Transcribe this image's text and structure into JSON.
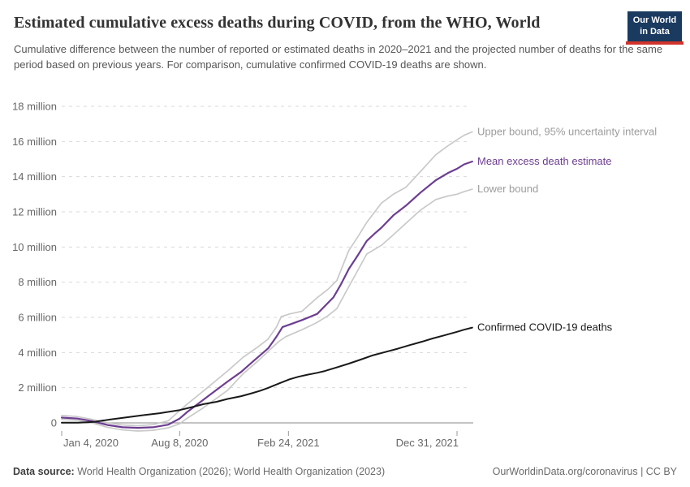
{
  "header": {
    "title": "Estimated cumulative excess deaths during COVID, from the WHO, World",
    "subtitle": "Cumulative difference between the number of reported or estimated deaths in 2020–2021 and the projected number of deaths for the same period based on previous years. For comparison, cumulative confirmed COVID-19 deaths are shown.",
    "logo": {
      "line1": "Our World",
      "line2": "in Data",
      "bg_color": "#1a3a5f",
      "accent_color": "#d0342c",
      "text_color": "#ffffff"
    }
  },
  "footer": {
    "datasource_label": "Data source:",
    "datasource_text": " World Health Organization (2026); World Health Organization (2023)",
    "license_text": "OurWorldinData.org/coronavirus | CC BY"
  },
  "chart_data": {
    "type": "line",
    "title": "Estimated cumulative excess deaths during COVID, from the WHO, World",
    "xlabel": "",
    "ylabel": "",
    "grid": {
      "show": true,
      "color": "#dadada",
      "zero_line_color": "#a0a0a0",
      "tick_color": "#999999",
      "axis_text_color": "#666666"
    },
    "y_axis": {
      "unit_label": "million",
      "zero_label": "0",
      "min": -0.6,
      "max": 18,
      "ticks": [
        0,
        2,
        4,
        6,
        8,
        10,
        12,
        14,
        16,
        18
      ]
    },
    "x_axis": {
      "domain_days": [
        0,
        727
      ],
      "series_end_day": 755,
      "ticks": [
        {
          "day": 0,
          "label": "Jan 4, 2020",
          "anchor": "start"
        },
        {
          "day": 217,
          "label": "Aug 8, 2020",
          "anchor": "middle"
        },
        {
          "day": 417,
          "label": "Feb 24, 2021",
          "anchor": "middle"
        },
        {
          "day": 727,
          "label": "Dec 31, 2021",
          "anchor": "end"
        }
      ]
    },
    "legend_position": "line-end-labels",
    "series": [
      {
        "id": "upper-bound",
        "label": "Upper bound, 95% uncertainty interval",
        "color": "#c9c9c9",
        "label_color": "#9c9c9c",
        "stroke_width": 1.7,
        "points_day_millions": [
          [
            0,
            0.42
          ],
          [
            28,
            0.36
          ],
          [
            56,
            0.2
          ],
          [
            84,
            0.0
          ],
          [
            112,
            -0.12
          ],
          [
            140,
            -0.16
          ],
          [
            168,
            -0.1
          ],
          [
            196,
            0.12
          ],
          [
            217,
            0.7
          ],
          [
            230,
            1.05
          ],
          [
            260,
            1.8
          ],
          [
            305,
            2.95
          ],
          [
            334,
            3.74
          ],
          [
            360,
            4.3
          ],
          [
            379,
            4.75
          ],
          [
            395,
            5.45
          ],
          [
            404,
            6.05
          ],
          [
            420,
            6.2
          ],
          [
            442,
            6.35
          ],
          [
            469,
            7.1
          ],
          [
            490,
            7.6
          ],
          [
            506,
            8.1
          ],
          [
            528,
            9.8
          ],
          [
            545,
            10.6
          ],
          [
            561,
            11.4
          ],
          [
            588,
            12.5
          ],
          [
            610,
            13.0
          ],
          [
            633,
            13.4
          ],
          [
            660,
            14.3
          ],
          [
            688,
            15.25
          ],
          [
            710,
            15.75
          ],
          [
            727,
            16.1
          ],
          [
            740,
            16.35
          ],
          [
            755,
            16.55
          ]
        ]
      },
      {
        "id": "lower-bound",
        "label": "Lower bound",
        "color": "#c9c9c9",
        "label_color": "#9c9c9c",
        "stroke_width": 1.7,
        "points_day_millions": [
          [
            0,
            0.2
          ],
          [
            28,
            0.15
          ],
          [
            56,
            0.0
          ],
          [
            84,
            -0.25
          ],
          [
            112,
            -0.4
          ],
          [
            140,
            -0.46
          ],
          [
            168,
            -0.42
          ],
          [
            196,
            -0.28
          ],
          [
            217,
            -0.05
          ],
          [
            230,
            0.25
          ],
          [
            260,
            0.85
          ],
          [
            305,
            1.85
          ],
          [
            334,
            2.8
          ],
          [
            360,
            3.5
          ],
          [
            379,
            4.05
          ],
          [
            400,
            4.65
          ],
          [
            412,
            4.9
          ],
          [
            442,
            5.3
          ],
          [
            469,
            5.7
          ],
          [
            490,
            6.1
          ],
          [
            506,
            6.5
          ],
          [
            528,
            7.75
          ],
          [
            545,
            8.7
          ],
          [
            561,
            9.6
          ],
          [
            588,
            10.1
          ],
          [
            610,
            10.7
          ],
          [
            633,
            11.35
          ],
          [
            660,
            12.1
          ],
          [
            688,
            12.7
          ],
          [
            710,
            12.9
          ],
          [
            727,
            13.0
          ],
          [
            740,
            13.15
          ],
          [
            755,
            13.29
          ]
        ]
      },
      {
        "id": "mean-excess-deaths",
        "label": "Mean excess death estimate",
        "color": "#6d3e91",
        "label_color": "#6d3e91",
        "stroke_width": 2.2,
        "points_day_millions": [
          [
            0,
            0.3
          ],
          [
            28,
            0.25
          ],
          [
            56,
            0.1
          ],
          [
            84,
            -0.12
          ],
          [
            112,
            -0.25
          ],
          [
            140,
            -0.28
          ],
          [
            168,
            -0.25
          ],
          [
            196,
            -0.1
          ],
          [
            217,
            0.25
          ],
          [
            230,
            0.6
          ],
          [
            260,
            1.3
          ],
          [
            305,
            2.35
          ],
          [
            330,
            2.9
          ],
          [
            350,
            3.45
          ],
          [
            380,
            4.25
          ],
          [
            395,
            4.9
          ],
          [
            406,
            5.45
          ],
          [
            420,
            5.6
          ],
          [
            442,
            5.85
          ],
          [
            470,
            6.2
          ],
          [
            500,
            7.15
          ],
          [
            514,
            7.9
          ],
          [
            528,
            8.75
          ],
          [
            545,
            9.55
          ],
          [
            561,
            10.35
          ],
          [
            575,
            10.75
          ],
          [
            588,
            11.1
          ],
          [
            610,
            11.8
          ],
          [
            633,
            12.35
          ],
          [
            660,
            13.1
          ],
          [
            688,
            13.8
          ],
          [
            710,
            14.2
          ],
          [
            727,
            14.45
          ],
          [
            740,
            14.7
          ],
          [
            755,
            14.86
          ]
        ]
      },
      {
        "id": "confirmed-covid-deaths",
        "label": "Confirmed COVID-19 deaths",
        "color": "#191919",
        "label_color": "#191919",
        "stroke_width": 2,
        "points_day_millions": [
          [
            0,
            0.01
          ],
          [
            30,
            0.01
          ],
          [
            60,
            0.06
          ],
          [
            90,
            0.2
          ],
          [
            120,
            0.32
          ],
          [
            150,
            0.44
          ],
          [
            180,
            0.55
          ],
          [
            217,
            0.73
          ],
          [
            240,
            0.9
          ],
          [
            260,
            1.06
          ],
          [
            285,
            1.2
          ],
          [
            305,
            1.36
          ],
          [
            330,
            1.52
          ],
          [
            349,
            1.68
          ],
          [
            365,
            1.83
          ],
          [
            379,
            1.98
          ],
          [
            400,
            2.25
          ],
          [
            419,
            2.48
          ],
          [
            435,
            2.62
          ],
          [
            454,
            2.75
          ],
          [
            470,
            2.85
          ],
          [
            484,
            2.95
          ],
          [
            505,
            3.15
          ],
          [
            528,
            3.37
          ],
          [
            550,
            3.6
          ],
          [
            573,
            3.85
          ],
          [
            595,
            4.03
          ],
          [
            618,
            4.22
          ],
          [
            640,
            4.42
          ],
          [
            663,
            4.62
          ],
          [
            682,
            4.8
          ],
          [
            700,
            4.95
          ],
          [
            727,
            5.18
          ],
          [
            740,
            5.3
          ],
          [
            755,
            5.42
          ]
        ]
      }
    ]
  }
}
